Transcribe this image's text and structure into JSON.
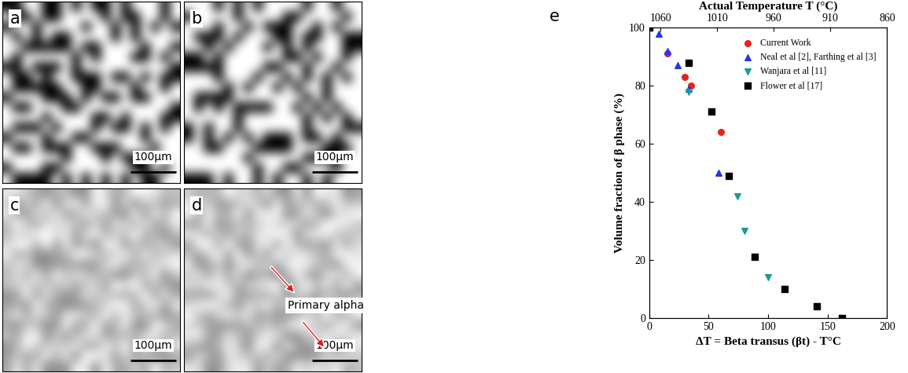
{
  "micrographs": [
    {
      "label": "a",
      "scale_bar": "100μm"
    },
    {
      "label": "b",
      "scale_bar": "100μm"
    },
    {
      "label": "c",
      "scale_bar": "100μm"
    },
    {
      "label": "d",
      "scale_bar": "100μm",
      "annotation": "Primary alpha"
    }
  ],
  "chart_panel_label": "e",
  "chart_data": {
    "type": "scatter",
    "xlabel": "ΔT = Beta transus (βt) - T°C",
    "ylabel": "Volume fraction of β phase (%)",
    "x2label": "Actual Temperature T (°C)",
    "xlim": [
      0,
      200
    ],
    "xticks": [
      0,
      50,
      100,
      150,
      200
    ],
    "ylim": [
      0,
      100
    ],
    "yticks": [
      0,
      20,
      40,
      60,
      80,
      100
    ],
    "x2lim": [
      1070,
      860
    ],
    "x2ticks": [
      1060,
      1010,
      960,
      910,
      860
    ],
    "grid": false,
    "legend": "upper right",
    "series": [
      {
        "name": "Current Work",
        "color": "#e8211c",
        "marker": "circle",
        "x": [
          15,
          30,
          35,
          60
        ],
        "values": [
          91,
          83,
          80,
          64
        ]
      },
      {
        "name": "Neal et al [2], Farthing et al [3]",
        "color": "#2238e8",
        "marker": "triangle_up",
        "x": [
          8,
          15,
          24,
          33,
          58
        ],
        "values": [
          98,
          92,
          87,
          79,
          50
        ]
      },
      {
        "name": "Wanjara et al [11]",
        "color": "#1a9a9a",
        "marker": "triangle_down",
        "x": [
          33,
          74,
          80,
          100
        ],
        "values": [
          78,
          42,
          30,
          14
        ]
      },
      {
        "name": "Flower et al [17]",
        "color": "#000000",
        "marker": "square",
        "x": [
          0,
          33,
          52,
          67,
          89,
          114,
          141,
          162
        ],
        "values": [
          100,
          88,
          71,
          49,
          21,
          10,
          4,
          0
        ]
      }
    ]
  }
}
